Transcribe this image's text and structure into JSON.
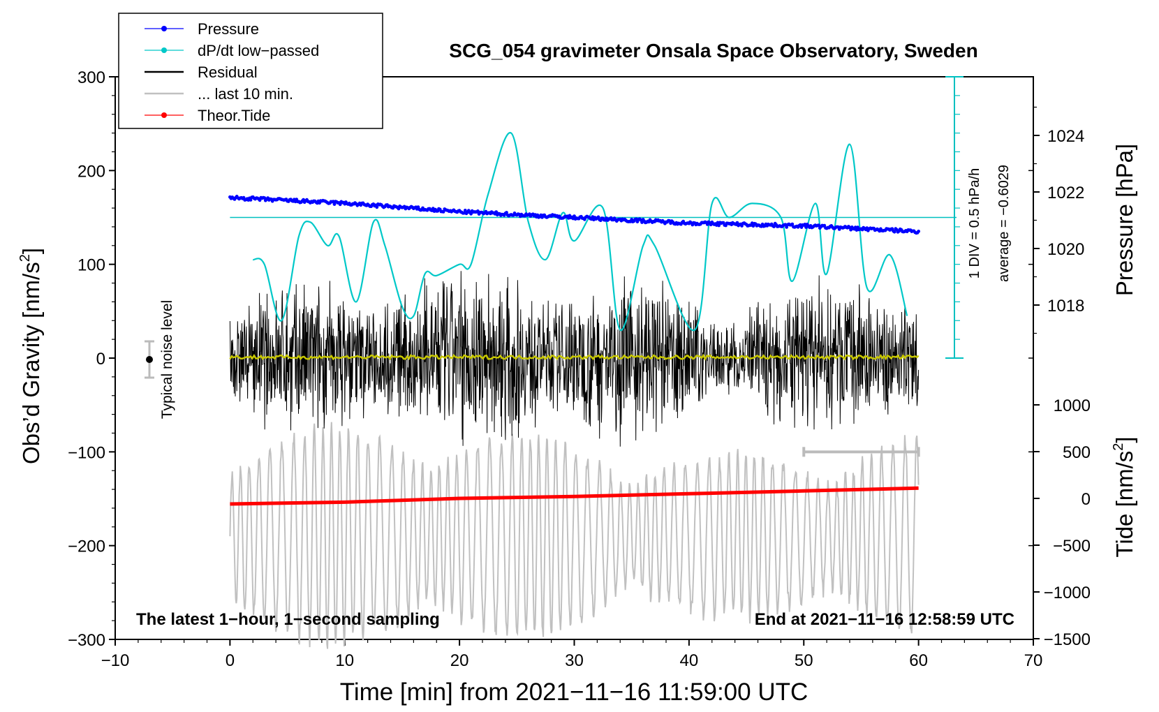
{
  "chart_data": {
    "type": "line",
    "title": "SCG_054 gravimeter Onsala Space Observatory, Sweden",
    "xlabel": "Time [min] from 2021−11−16 11:59:00 UTC",
    "xlim": [
      -10,
      70
    ],
    "xticks": [
      -10,
      0,
      10,
      20,
      30,
      40,
      50,
      60,
      70
    ],
    "left_axis": {
      "label_main": "Obs’d Gravity [nm/s",
      "label_sup": "2",
      "label_close": "]",
      "ylim": [
        -300,
        300
      ],
      "ticks": [
        -300,
        -200,
        -100,
        0,
        100,
        200,
        300
      ]
    },
    "pressure_axis": {
      "label": "Pressure [hPa]",
      "ticks": [
        1018,
        1020,
        1022,
        1024
      ]
    },
    "tide_axis": {
      "label_main": "Tide [nm/s",
      "label_sup": "2",
      "label_close": "]",
      "ticks": [
        -1500,
        -1000,
        -500,
        0,
        500,
        1000
      ]
    },
    "dpdt_scale": {
      "label_div": "1 DIV = 0.5 hPa/h",
      "label_avg": "average = −0.6029"
    },
    "legend": [
      {
        "name": "Pressure",
        "color": "#0000ff",
        "marker": true
      },
      {
        "name": "dP/dt low−passed",
        "color": "#00c8c8",
        "marker": true
      },
      {
        "name": "Residual",
        "color": "#000000",
        "marker": false
      },
      {
        "name": "... last 10 min.",
        "color": "#c0c0c0",
        "marker": false
      },
      {
        "name": "Theor.Tide",
        "color": "#ff0000",
        "marker": true
      }
    ],
    "noise_label": "Typical noise level",
    "bottom_left_note": "The latest 1−hour, 1−second sampling",
    "bottom_right_note": "End at 2021−11−16 12:58:59 UTC",
    "series": [
      {
        "name": "Pressure",
        "axis": "pressure",
        "color": "#0000ff",
        "x": [
          0,
          10,
          20,
          30,
          40,
          50,
          60
        ],
        "y": [
          1021.8,
          1021.6,
          1021.3,
          1021.1,
          1020.9,
          1020.8,
          1020.6
        ]
      },
      {
        "name": "dP/dt low-passed",
        "axis": "gravity",
        "color": "#00c8c8",
        "x": [
          2,
          3,
          4.5,
          6,
          7,
          8.5,
          9.5,
          11,
          12.5,
          13.5,
          15,
          16,
          17,
          18,
          20,
          21,
          22.5,
          24.5,
          26,
          27.5,
          29,
          30,
          32.5,
          34,
          36,
          37,
          40.5,
          42,
          43.5,
          45.5,
          48,
          49,
          51,
          52,
          54,
          55.5,
          57.5,
          59
        ],
        "y": [
          105,
          100,
          40,
          130,
          145,
          120,
          130,
          60,
          145,
          120,
          55,
          45,
          90,
          88,
          100,
          100,
          175,
          240,
          145,
          105,
          155,
          125,
          160,
          30,
          120,
          120,
          30,
          165,
          150,
          165,
          150,
          82,
          165,
          90,
          228,
          75,
          110,
          45
        ]
      },
      {
        "name": "Theor.Tide",
        "axis": "tide",
        "color": "#ff0000",
        "x": [
          0,
          10,
          20,
          30,
          40,
          50,
          60
        ],
        "y": [
          -60,
          -40,
          0,
          20,
          50,
          80,
          110
        ]
      }
    ],
    "last10_bar_x": [
      50,
      60
    ]
  }
}
